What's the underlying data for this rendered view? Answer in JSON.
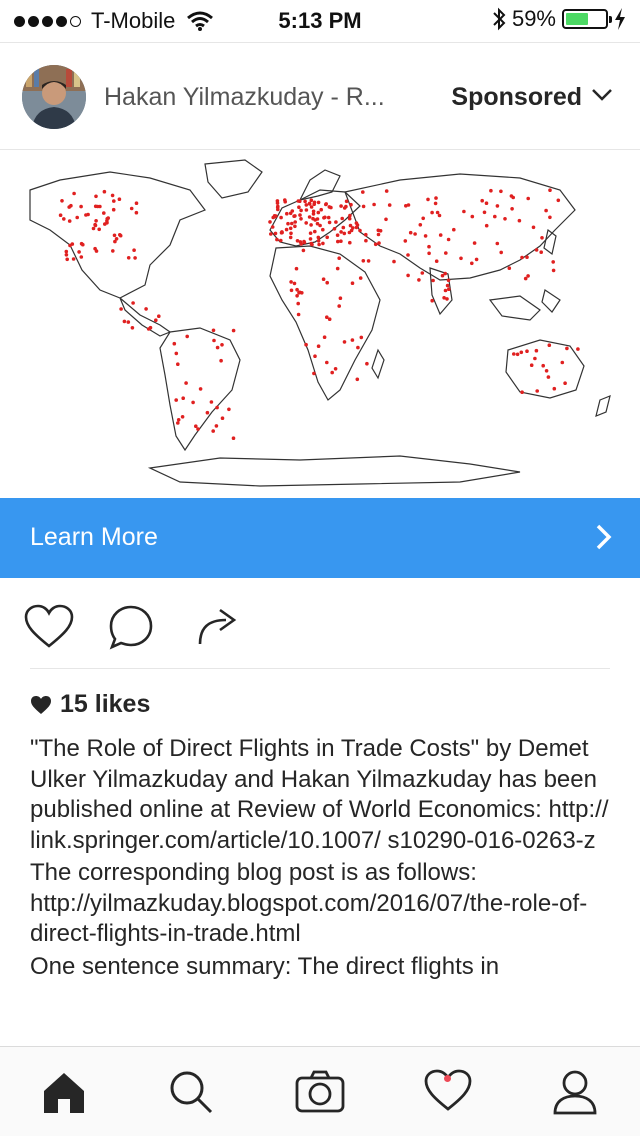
{
  "status_bar": {
    "carrier": "T-Mobile",
    "time": "5:13 PM",
    "battery": "59%",
    "battery_level": 0.59
  },
  "post": {
    "author": "Hakan Yilmazkuday - R...",
    "sponsored_label": "Sponsored",
    "cta_label": "Learn More",
    "likes": "15 likes",
    "caption": [
      "\"The Role of Direct Flights in Trade Costs\" by Demet Ulker Yilmazkuday and Hakan Yilmazkuday has been published online at Review of World Economics: http:// link.springer.com/article/10.1007/ s10290-016-0263-z",
      "The corresponding blog post is as follows: http://yilmazkuday.blogspot.com/2016/07/the-role-of-direct-flights-in-trade.html",
      "One sentence summary: The direct flights in"
    ]
  },
  "icons": {
    "header": [
      "avatar",
      "chevron-down-icon"
    ],
    "actions": [
      "heart-icon",
      "comment-icon",
      "share-icon"
    ],
    "tabs": [
      "home-icon",
      "search-icon",
      "camera-icon",
      "activity-heart-icon",
      "profile-icon"
    ]
  },
  "colors": {
    "accent": "#3897f0",
    "map_dots": "#e02020",
    "notification": "#ed4956"
  }
}
